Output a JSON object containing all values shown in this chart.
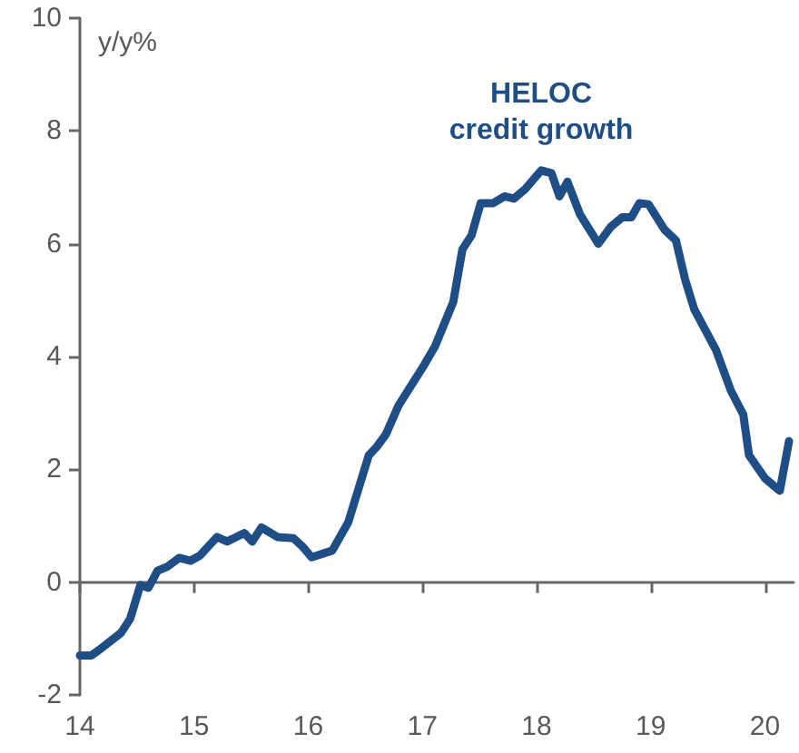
{
  "chart_data": {
    "type": "line",
    "ylabel": "y/y%",
    "xlim": [
      14,
      20.25
    ],
    "xticks": [
      14,
      15,
      16,
      17,
      18,
      19,
      20
    ],
    "ylim": [
      -2,
      10
    ],
    "yticks": [
      -2,
      0,
      2,
      4,
      6,
      8,
      10
    ],
    "legend": false,
    "marker": "none",
    "line_style": "solid",
    "series": [
      {
        "name": "HELOC credit growth",
        "color": "#1f4e86",
        "x": [
          14.0,
          14.1,
          14.17,
          14.36,
          14.44,
          14.53,
          14.6,
          14.68,
          14.77,
          14.87,
          14.97,
          15.05,
          15.2,
          15.29,
          15.44,
          15.51,
          15.59,
          15.73,
          15.87,
          15.95,
          16.03,
          16.21,
          16.35,
          16.53,
          16.6,
          16.68,
          16.79,
          17.0,
          17.11,
          17.27,
          17.35,
          17.43,
          17.51,
          17.62,
          17.72,
          17.8,
          17.9,
          18.04,
          18.13,
          18.2,
          18.27,
          18.38,
          18.54,
          18.65,
          18.75,
          18.83,
          18.9,
          18.98,
          19.12,
          19.22,
          19.3,
          19.38,
          19.57,
          19.7,
          19.81,
          19.86,
          20.0,
          20.13,
          20.21
        ],
        "values": [
          -1.3,
          -1.3,
          -1.2,
          -0.9,
          -0.65,
          -0.05,
          -0.1,
          0.2,
          0.28,
          0.43,
          0.38,
          0.47,
          0.8,
          0.72,
          0.87,
          0.72,
          0.97,
          0.8,
          0.78,
          0.63,
          0.44,
          0.56,
          1.06,
          2.25,
          2.4,
          2.62,
          3.13,
          3.8,
          4.18,
          4.97,
          5.9,
          6.15,
          6.72,
          6.72,
          6.84,
          6.8,
          6.97,
          7.3,
          7.25,
          6.84,
          7.1,
          6.52,
          6.0,
          6.3,
          6.47,
          6.47,
          6.72,
          6.7,
          6.25,
          6.06,
          5.37,
          4.84,
          4.12,
          3.4,
          2.97,
          2.25,
          1.84,
          1.62,
          2.5
        ]
      }
    ]
  }
}
